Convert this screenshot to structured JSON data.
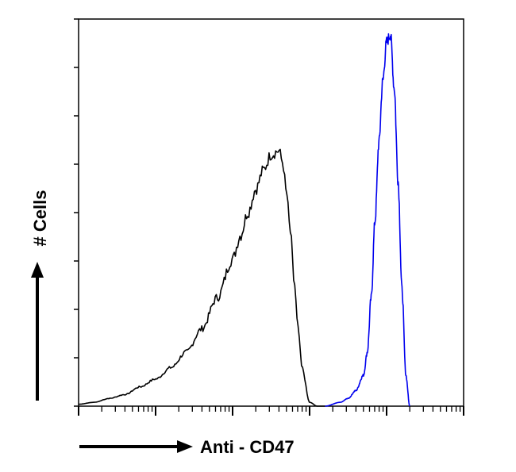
{
  "chart_data": {
    "type": "line",
    "subtype": "flow-cytometry-histogram",
    "xlabel": "Anti - CD47",
    "ylabel": "# Cells",
    "x_scale": "log",
    "xlim": [
      1,
      100000
    ],
    "ylim": [
      0,
      100
    ],
    "grid": false,
    "legend": "none",
    "tick_labels_shown": false,
    "series": [
      {
        "color": "#000000",
        "x": [
          1,
          1.6,
          2.5,
          4,
          6.3,
          10,
          16,
          25,
          40,
          63,
          100,
          126,
          158,
          200,
          251,
          316,
          398,
          447,
          501,
          562,
          631,
          708,
          794,
          1000,
          1259,
          1585
        ],
        "y": [
          0.5,
          1,
          2,
          3,
          5,
          7,
          10,
          14,
          20,
          28,
          38,
          44,
          50,
          56,
          61,
          65,
          66,
          63,
          55,
          45,
          32,
          20,
          10,
          1,
          0,
          0
        ]
      },
      {
        "color": "#0000ee",
        "x": [
          1585,
          2512,
          3162,
          3981,
          5012,
          5623,
          6310,
          7079,
          7943,
          8913,
          10000,
          11220,
          12589,
          14125,
          15849,
          17783,
          19953
        ],
        "y": [
          0,
          1,
          2,
          4,
          8,
          14,
          28,
          48,
          68,
          84,
          94,
          96,
          82,
          58,
          30,
          8,
          0
        ]
      }
    ]
  }
}
